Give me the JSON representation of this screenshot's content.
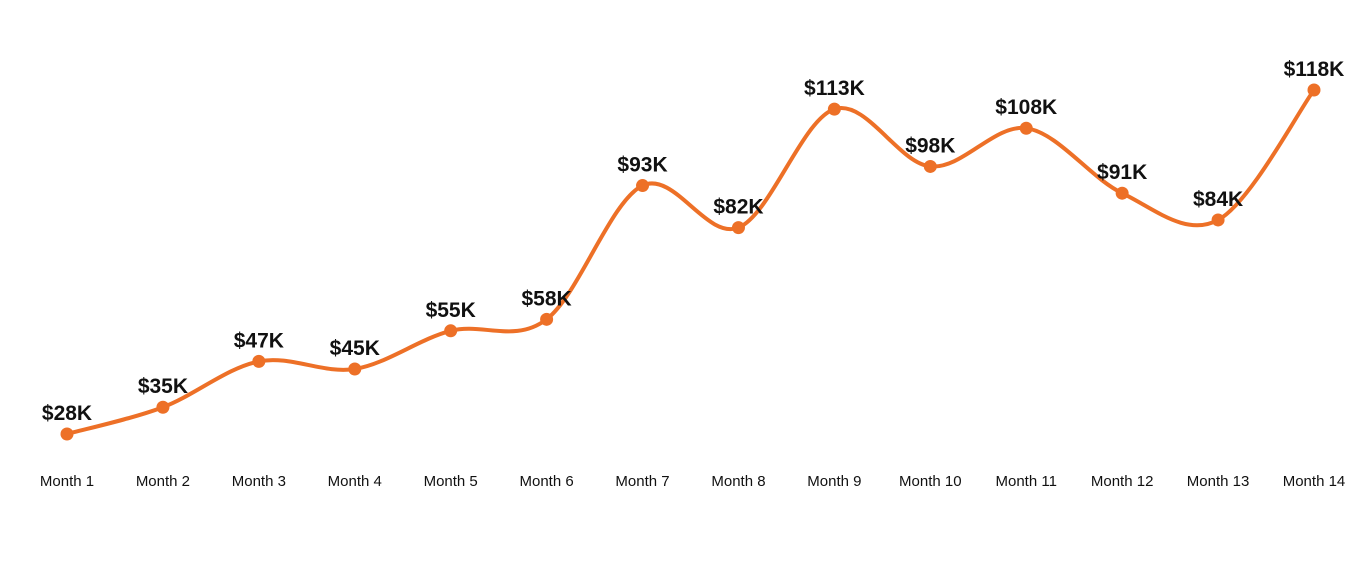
{
  "colors": {
    "line": "#ED7027",
    "point": "#ED7027",
    "text": "#111111",
    "background": "#FFFFFF"
  },
  "chart_data": {
    "type": "line",
    "title": "",
    "xlabel": "",
    "ylabel": "",
    "smooth": true,
    "grid": false,
    "legend": "none",
    "categories": [
      "Month 1",
      "Month 2",
      "Month 3",
      "Month 4",
      "Month 5",
      "Month 6",
      "Month 7",
      "Month 8",
      "Month 9",
      "Month 10",
      "Month 11",
      "Month 12",
      "Month 13",
      "Month 14"
    ],
    "values": [
      28,
      35,
      47,
      45,
      55,
      58,
      93,
      82,
      113,
      98,
      108,
      91,
      84,
      118
    ],
    "value_labels": [
      "$28K",
      "$35K",
      "$47K",
      "$45K",
      "$55K",
      "$58K",
      "$93K",
      "$82K",
      "$113K",
      "$98K",
      "$108K",
      "$91K",
      "$84K",
      "$118K"
    ],
    "ylim": [
      28,
      118
    ]
  }
}
